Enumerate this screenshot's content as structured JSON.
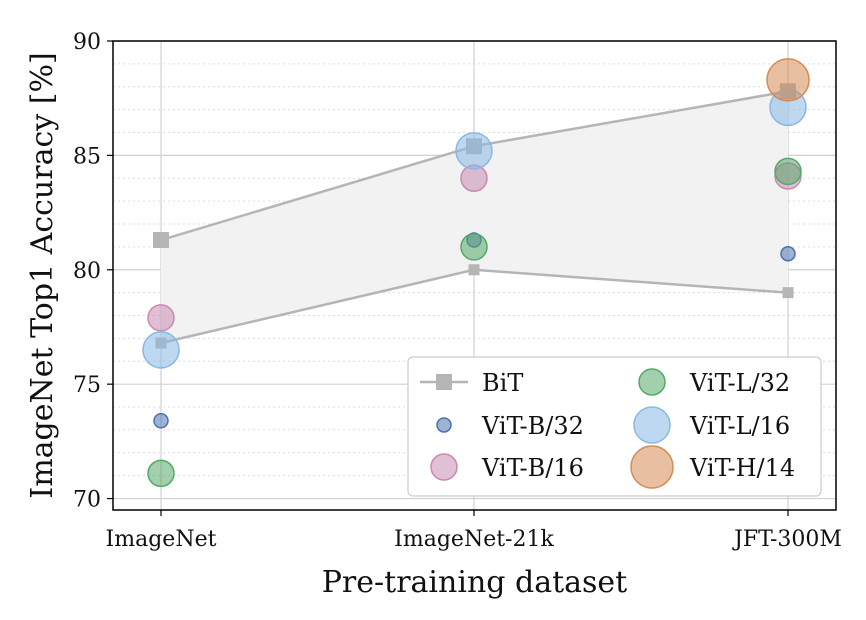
{
  "chart_data": {
    "type": "scatter",
    "xlabel": "Pre-training dataset",
    "ylabel": "ImageNet Top1 Accuracy [%]",
    "categories": [
      "ImageNet",
      "ImageNet-21k",
      "JFT-300M"
    ],
    "ylim": [
      69.5,
      90
    ],
    "yticks": [
      70,
      75,
      80,
      85,
      90
    ],
    "grid": true,
    "minor_grid": true,
    "legend_position": "lower-right",
    "bit_band": {
      "name": "BiT",
      "upper": [
        81.3,
        85.4,
        87.8
      ],
      "lower": [
        76.8,
        80.0,
        79.0
      ],
      "color": "#b5b5b5",
      "fill": "#f2f2f2"
    },
    "series": [
      {
        "name": "ViT-B/32",
        "color": "#4c72b0",
        "size": "small",
        "values": [
          73.4,
          81.3,
          80.7
        ]
      },
      {
        "name": "ViT-B/16",
        "color": "#c98ab0",
        "size": "medium",
        "values": [
          77.9,
          84.0,
          84.1
        ]
      },
      {
        "name": "ViT-L/32",
        "color": "#55a868",
        "size": "medium",
        "values": [
          71.1,
          81.0,
          84.3
        ]
      },
      {
        "name": "ViT-L/16",
        "color": "#8ab8e6",
        "size": "large",
        "values": [
          76.5,
          85.2,
          87.1
        ]
      },
      {
        "name": "ViT-H/14",
        "color": "#d68a52",
        "size": "xlarge",
        "values": [
          null,
          null,
          88.3
        ]
      }
    ],
    "legend": [
      {
        "label": "BiT",
        "kind": "line",
        "color": "#b5b5b5"
      },
      {
        "label": "ViT-L/32",
        "kind": "dot",
        "color": "#55a868",
        "size": "medium"
      },
      {
        "label": "ViT-B/32",
        "kind": "dot",
        "color": "#4c72b0",
        "size": "small"
      },
      {
        "label": "ViT-L/16",
        "kind": "dot",
        "color": "#8ab8e6",
        "size": "large"
      },
      {
        "label": "ViT-B/16",
        "kind": "dot",
        "color": "#c98ab0",
        "size": "medium"
      },
      {
        "label": "ViT-H/14",
        "kind": "dot",
        "color": "#d68a52",
        "size": "xlarge"
      }
    ]
  }
}
